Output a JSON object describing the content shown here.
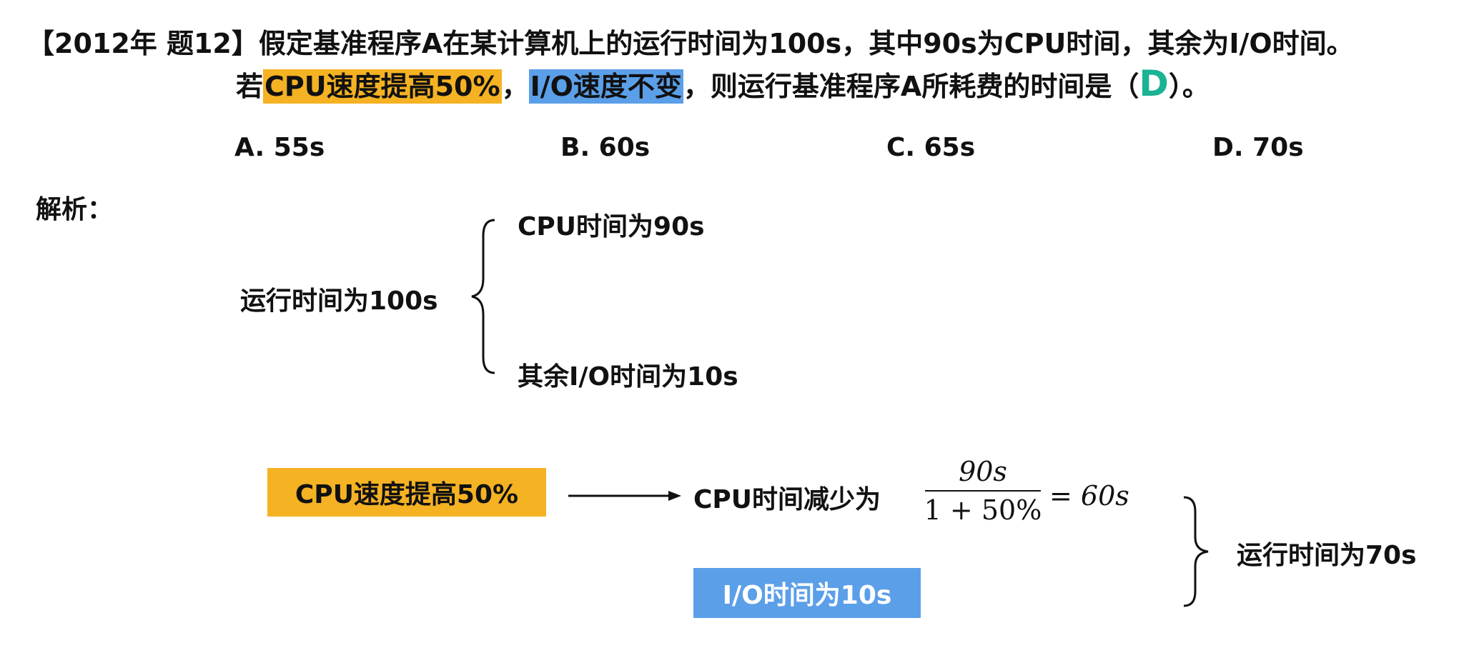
{
  "question": {
    "tag": "【2012年 题12】",
    "line1": "假定基准程序A在某计算机上的运行时间为100s，其中90s为CPU时间，其余为I/O时间。",
    "line2_prefix": "若",
    "line2_hl1": "CPU速度提高50%",
    "line2_sep": "，",
    "line2_hl2": "I/O速度不变",
    "line2_mid": "，则运行基准程序A所耗费的时间是（",
    "answer": "D",
    "line2_end": "）。"
  },
  "options": [
    "A. 55s",
    "B. 60s",
    "C. 65s",
    "D. 70s"
  ],
  "analysis": {
    "label": "解析：",
    "total": "运行时间为100s",
    "cpu": "CPU时间为90s",
    "io": "其余I/O时间为10s"
  },
  "calc": {
    "cpu_box": "CPU速度提高50%",
    "cpu_result_label": "CPU时间减少为",
    "frac_num": "90s",
    "frac_den": "1 + 50%",
    "eq": "= 60s",
    "io_box": "I/O时间为10s",
    "final": "运行时间为70s"
  },
  "colors": {
    "orange": "#f5b223",
    "blue": "#5b9fe8",
    "answer": "#1ab394"
  }
}
